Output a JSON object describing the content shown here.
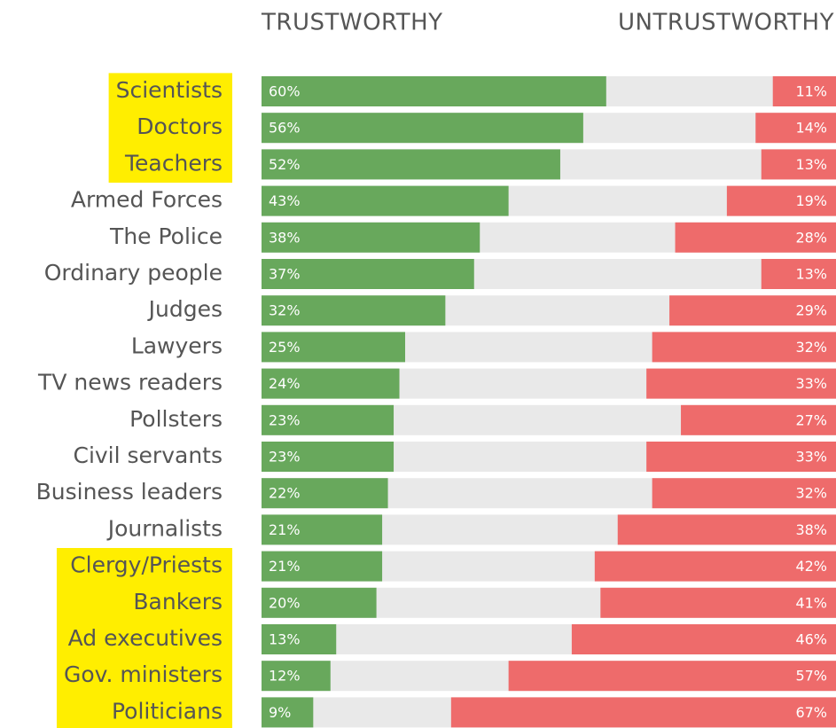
{
  "chart_data": {
    "type": "diverging_bar",
    "categories": [
      "Scientists",
      "Doctors",
      "Teachers",
      "Armed Forces",
      "The Police",
      "Ordinary people",
      "Judges",
      "Lawyers",
      "TV news readers",
      "Pollsters",
      "Civil servants",
      "Business leaders",
      "Journalists",
      "Clergy/Priests",
      "Bankers",
      "Ad executives",
      "Gov. ministers",
      "Politicians"
    ],
    "highlighted": [
      true,
      true,
      true,
      false,
      false,
      false,
      false,
      false,
      false,
      false,
      false,
      false,
      false,
      true,
      true,
      true,
      true,
      true
    ],
    "highlight_color": "#ffee00",
    "xlim": [
      0,
      100
    ],
    "series": [
      {
        "name": "TRUSTWORTHY",
        "color": "#68a85c",
        "values": [
          60,
          56,
          52,
          43,
          38,
          37,
          32,
          25,
          24,
          23,
          23,
          22,
          21,
          21,
          20,
          13,
          12,
          9
        ],
        "value_labels": [
          "60%",
          "56%",
          "52%",
          "43%",
          "38%",
          "37%",
          "32%",
          "25%",
          "24%",
          "23%",
          "23%",
          "22%",
          "21%",
          "21%",
          "20%",
          "13%",
          "12%",
          "9%"
        ]
      },
      {
        "name": "UNTRUSTWORTHY",
        "color": "#ee6b6b",
        "values": [
          11,
          14,
          13,
          19,
          28,
          13,
          29,
          32,
          33,
          27,
          33,
          32,
          38,
          42,
          41,
          46,
          57,
          67
        ],
        "value_labels": [
          "11%",
          "14%",
          "13%",
          "19%",
          "28%",
          "13%",
          "29%",
          "32%",
          "33%",
          "27%",
          "33%",
          "32%",
          "38%",
          "42%",
          "41%",
          "46%",
          "57%",
          "67%"
        ]
      }
    ]
  }
}
